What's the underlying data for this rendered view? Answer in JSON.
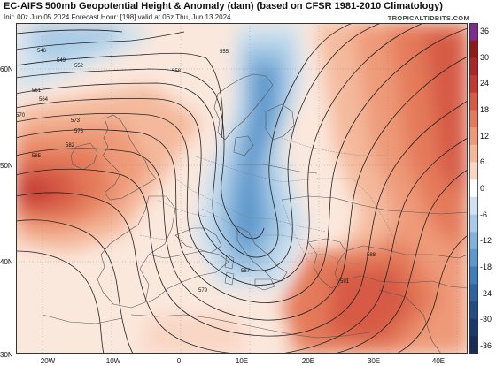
{
  "title": "EC-AIFS 500mb Geopotential Height & Anomaly (dam) (based on CFSR 1981-2010 Climatology)",
  "subtitle": "Init: 00z Jun 05 2024   Forecast Hour: [198]   valid at 06z Thu, Jun 13 2024",
  "watermark": "TROPICALTIDBITS.COM",
  "latitude_labels": [
    "60N",
    "50N",
    "40N",
    "30N"
  ],
  "longitude_labels": [
    "20W",
    "10W",
    "0",
    "10E",
    "20E",
    "30E",
    "40E"
  ],
  "colorbar": {
    "ticks": [
      "36",
      "30",
      "24",
      "18",
      "12",
      "6",
      "0",
      "-6",
      "-12",
      "-18",
      "-24",
      "-30",
      "-36"
    ],
    "colors_high_to_low": [
      "#7b2e8e",
      "#8e1a1a",
      "#a9282a",
      "#c43a32",
      "#d65a44",
      "#e47a5a",
      "#ee9a78",
      "#f4b99c",
      "#f9d6c4",
      "#ffffff",
      "#cfe2f0",
      "#a9cbe6",
      "#82b2da",
      "#5d97cc",
      "#3f7db8",
      "#2e63a0",
      "#244c86",
      "#1b3a6c",
      "#152d58"
    ]
  },
  "contour_labels": [
    "546",
    "549",
    "552",
    "555",
    "558",
    "561",
    "564",
    "567",
    "570",
    "573",
    "576",
    "579",
    "582",
    "585",
    "588",
    "591"
  ]
}
